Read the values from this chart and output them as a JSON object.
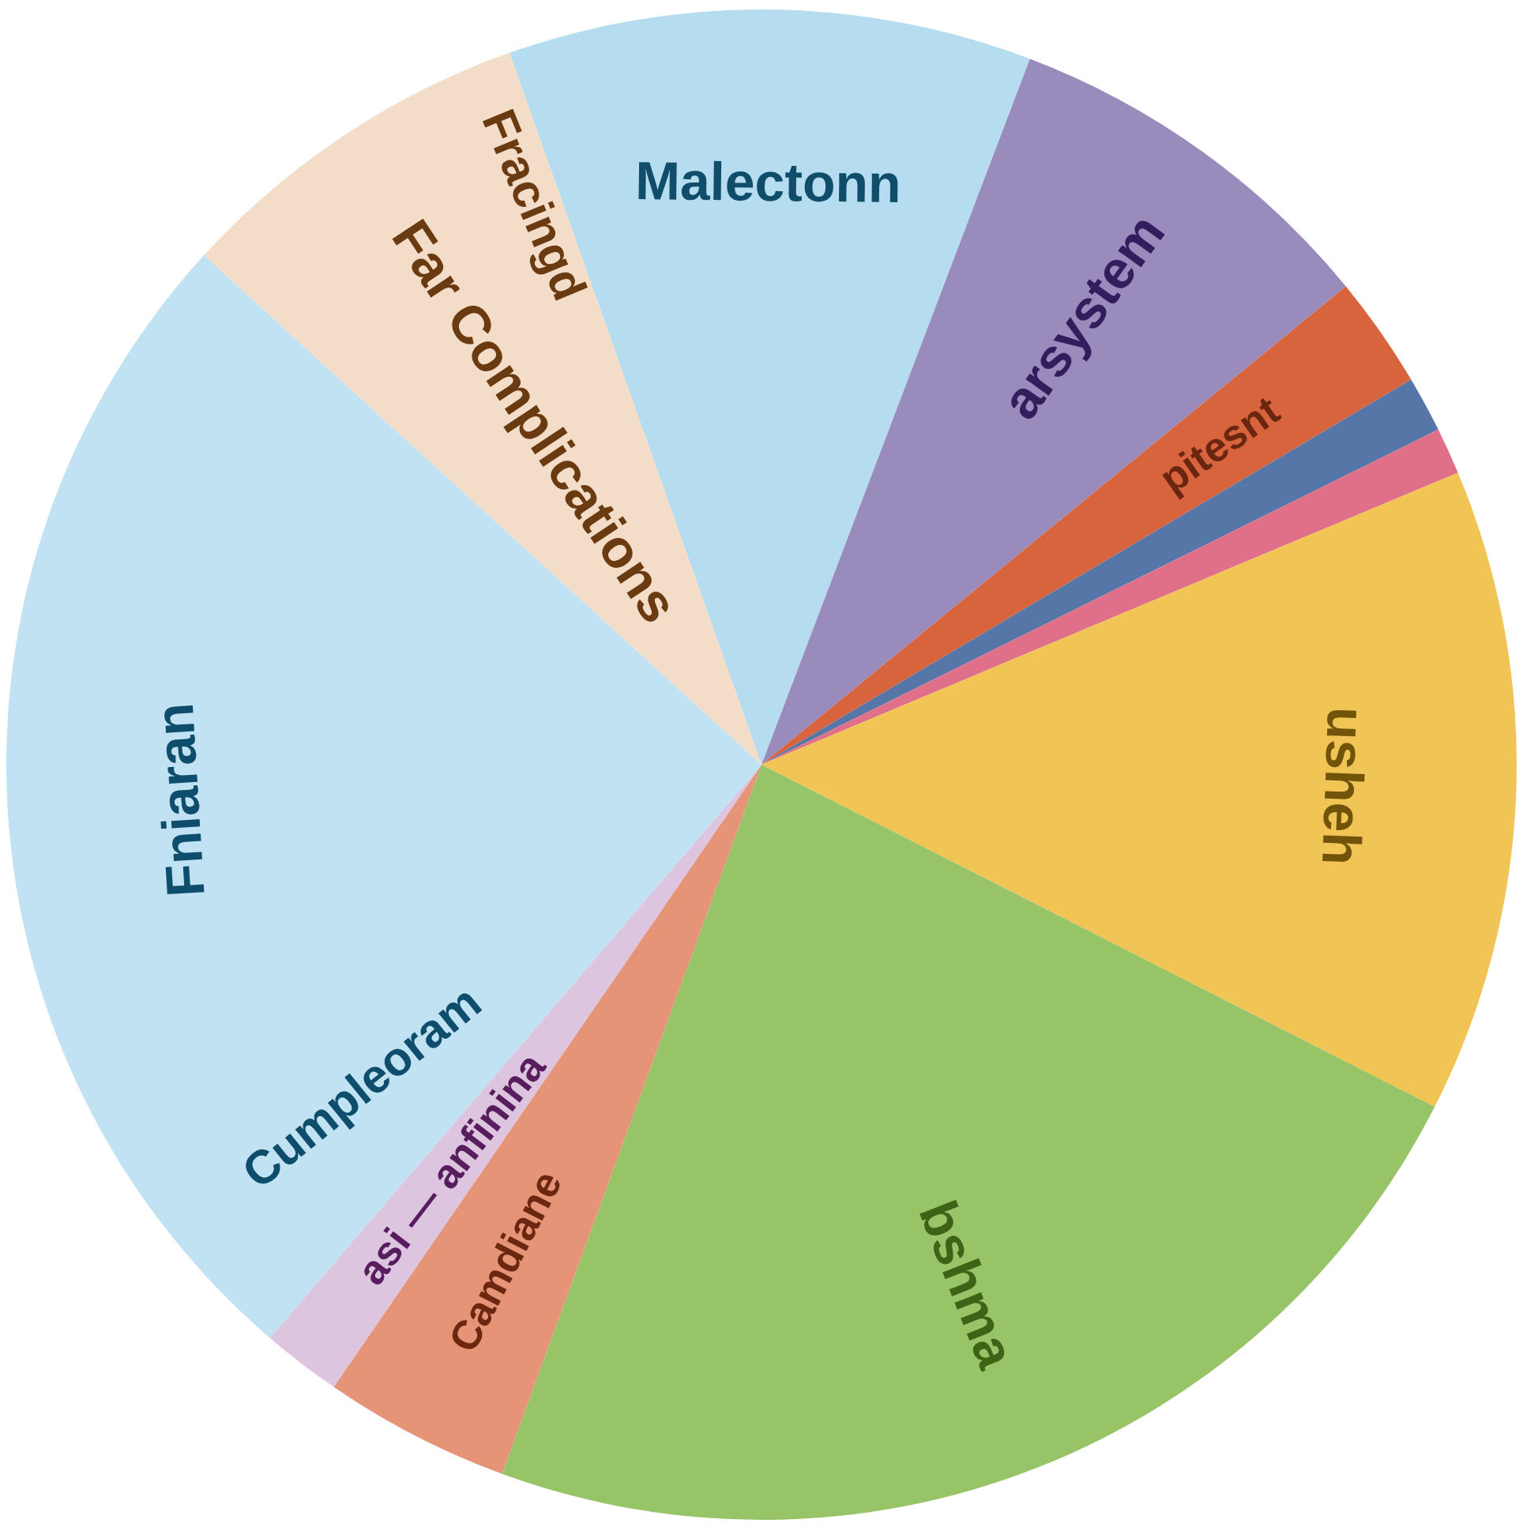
{
  "chart_data": {
    "type": "pie",
    "categories": [
      "Malectonn",
      "arsystem",
      "pitesnt",
      null,
      null,
      "usheh",
      "bshma",
      "Camdiane",
      "asi — anfinina",
      "Fniaran",
      "Far Complications"
    ],
    "values": [
      11.2,
      8.3,
      2.4,
      1.2,
      1.0,
      13.8,
      23.1,
      4.0,
      1.7,
      25.5,
      7.8
    ],
    "colors": [
      "#b5dcef",
      "#9a8bbd",
      "#d8643e",
      "#5776a8",
      "#e0708a",
      "#f0c555",
      "#96c466",
      "#e59478",
      "#ddc5df",
      "#c0e2f3",
      "#f3dcc8"
    ],
    "annotations": [
      "Fracingd",
      "Cumpleoram"
    ]
  }
}
